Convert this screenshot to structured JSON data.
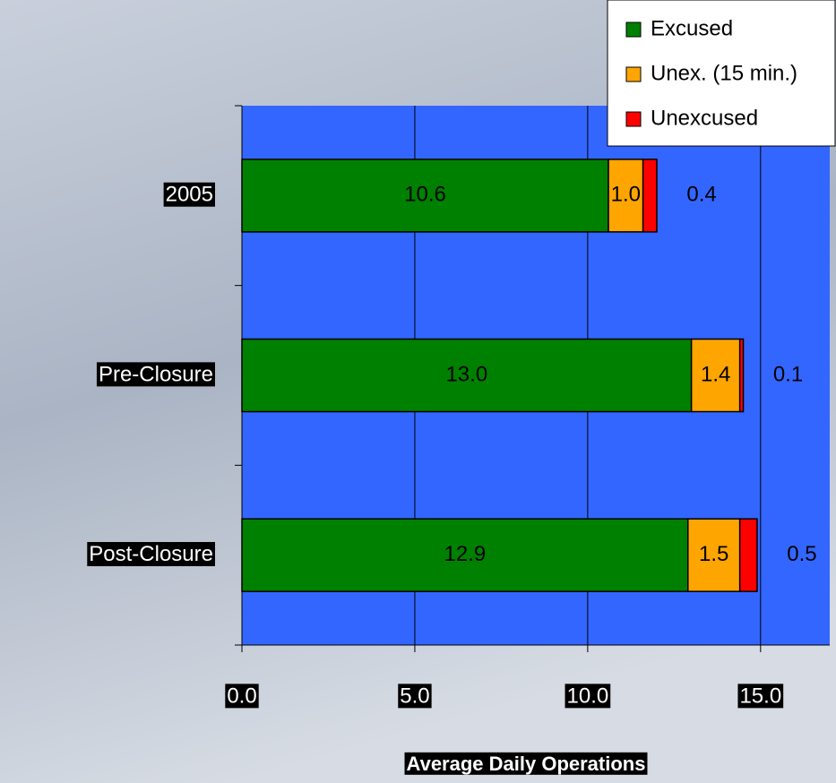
{
  "chart_data": {
    "type": "stacked-bar-horizontal",
    "xlabel": "Average Daily Operations",
    "categories": [
      "2005",
      "Pre-Closure",
      "Post-Closure"
    ],
    "series": [
      {
        "name": "Excused",
        "color": "#008000",
        "values": [
          10.6,
          13.0,
          12.9
        ],
        "value_labels": [
          "10.6",
          "13.0",
          "12.9"
        ]
      },
      {
        "name": "Unex. (15 min.)",
        "color": "#ffa500",
        "values": [
          1.0,
          1.4,
          1.5
        ],
        "value_labels": [
          "1.0",
          "1.4",
          "1.5"
        ]
      },
      {
        "name": "Unexcused",
        "color": "#ff0000",
        "values": [
          0.4,
          0.1,
          0.5
        ],
        "value_labels": [
          "0.4",
          "0.1",
          "0.5"
        ]
      }
    ],
    "xlim": [
      0,
      17
    ],
    "xticks": [
      {
        "value": 0,
        "label": "0.0"
      },
      {
        "value": 5,
        "label": "5.0"
      },
      {
        "value": 10,
        "label": "10.0"
      },
      {
        "value": 15,
        "label": "15.0"
      }
    ],
    "grid": true,
    "legend": "top-right",
    "plot_background": "#3366ff"
  }
}
